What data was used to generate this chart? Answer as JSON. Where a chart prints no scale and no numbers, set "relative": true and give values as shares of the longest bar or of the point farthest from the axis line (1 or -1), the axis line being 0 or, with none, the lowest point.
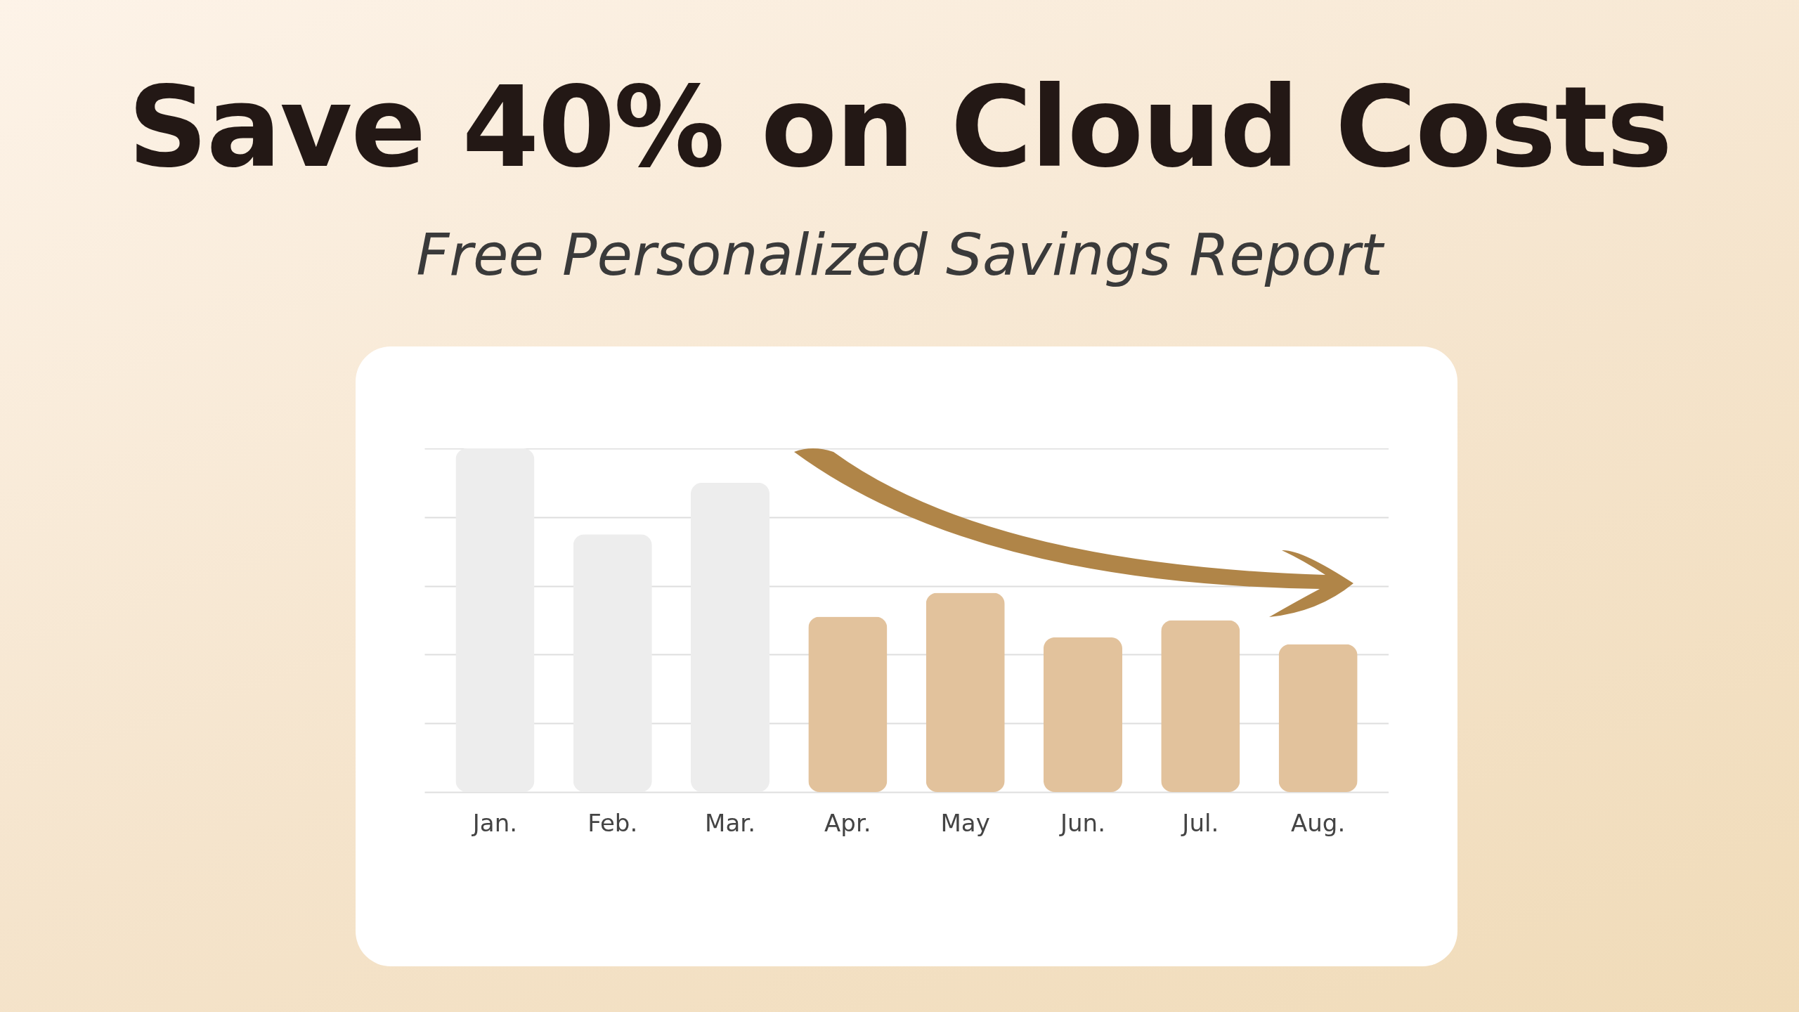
{
  "chart_data": {
    "type": "bar",
    "title": "Save 40% on Cloud Costs",
    "subtitle": "Free Personalized Savings Report",
    "categories": [
      "Jan.",
      "Feb.",
      "Mar.",
      "Apr.",
      "May",
      "Jun.",
      "Jul.",
      "Aug."
    ],
    "values": [
      1,
      0.75,
      0.9,
      0.51,
      0.58,
      0.45,
      0.5,
      0.43
    ],
    "colors": [
      "#ededed",
      "#ededed",
      "#ededed",
      "#e2c29c",
      "#e2c29c",
      "#e2c29c",
      "#e2c29c",
      "#e2c29c"
    ],
    "relative": true,
    "grid": true
  }
}
